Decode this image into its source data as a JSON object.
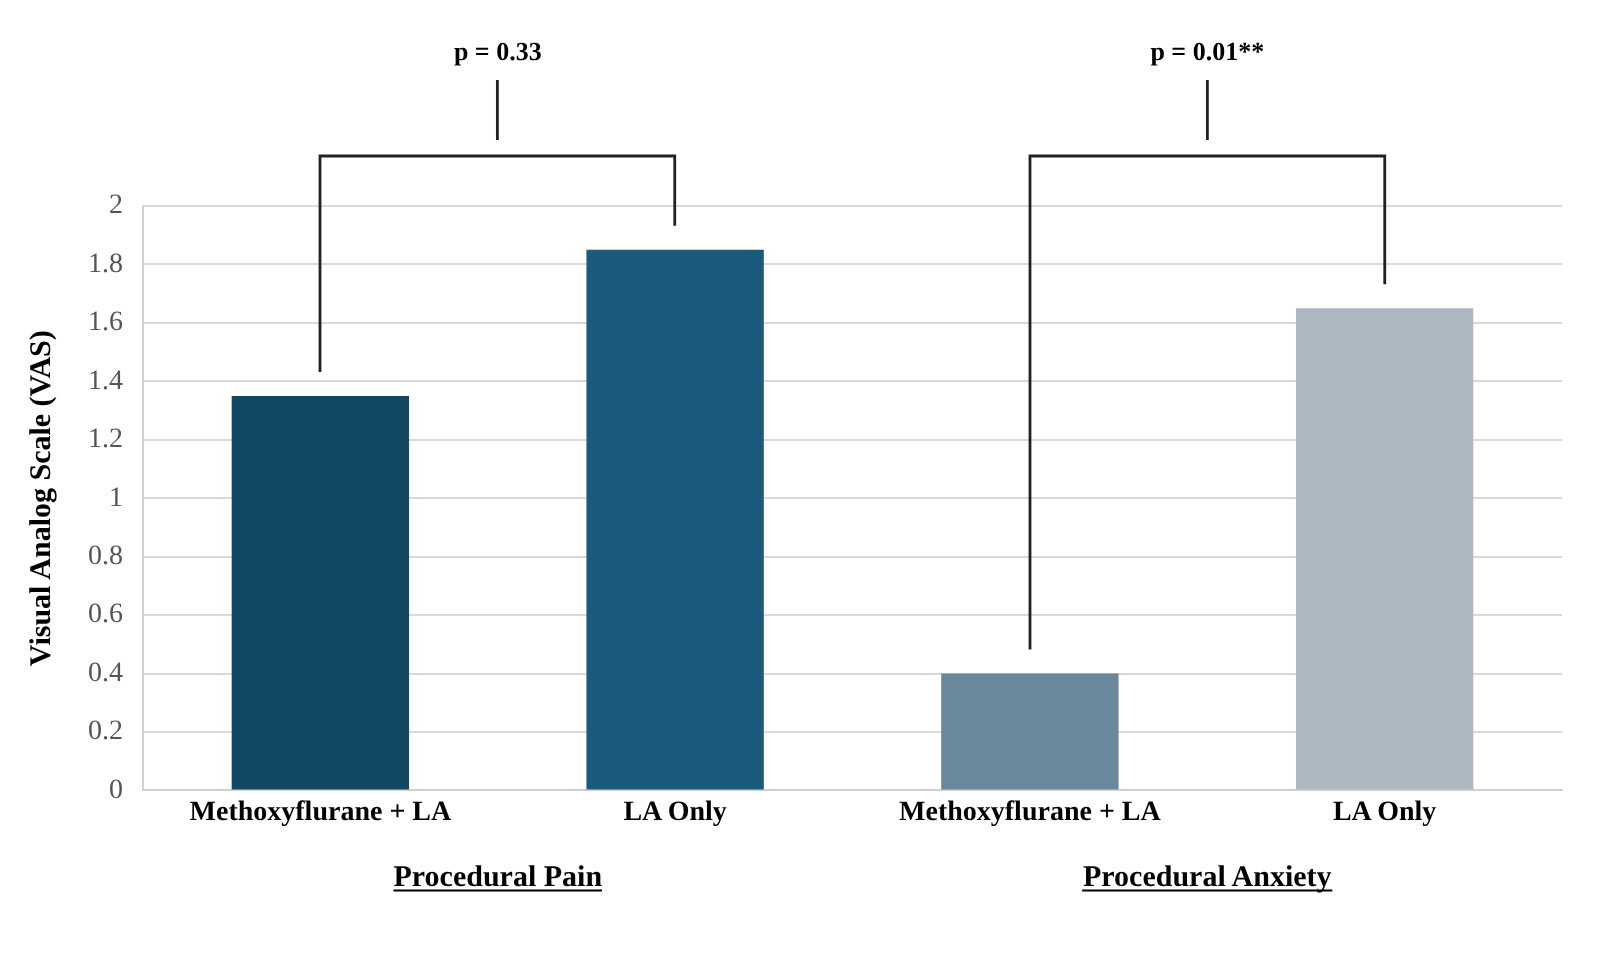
{
  "chart_data": {
    "type": "bar",
    "categories": [
      "Methoxyflurane + LA",
      "LA Only",
      "Methoxyflurane + LA",
      "LA Only"
    ],
    "values": [
      1.35,
      1.85,
      0.4,
      1.65
    ],
    "colors": [
      "#134864",
      "#1a5a7a",
      "#6b879c",
      "#adb8c2"
    ],
    "ylabel": "Visual Analog Scale (VAS)",
    "ylim": [
      0,
      2
    ],
    "yticks": [
      0,
      0.2,
      0.4,
      0.6,
      0.8,
      1,
      1.2,
      1.4,
      1.6,
      1.8,
      2
    ],
    "grid": "y",
    "annotations": [
      "p = 0.33",
      "p = 0.01**",
      "Procedural Pain",
      "Procedural Anxiety"
    ]
  }
}
